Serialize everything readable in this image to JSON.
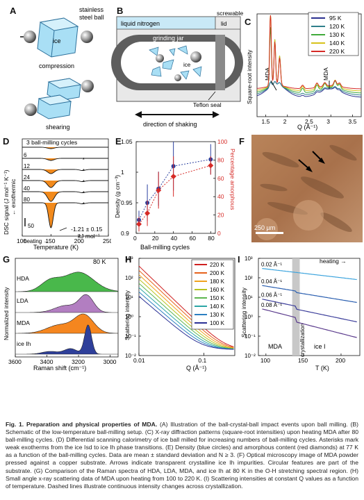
{
  "panels": {
    "A": {
      "letter": "A",
      "ball_label_1": "stainless",
      "ball_label_2": "steel ball",
      "ice": "ice",
      "compression": "compression",
      "shearing": "shearing"
    },
    "B": {
      "letter": "B",
      "liquid_nitrogen": "liquid nitrogen",
      "screwable_1": "screwable",
      "screwable_2": "lid",
      "grinding_jar": "grinding jar",
      "ice": "ice",
      "teflon": "Teflon seal",
      "direction": "direction of shaking"
    },
    "C": {
      "letter": "C",
      "ylabel": "Square-root intensity",
      "xlabel": "Q (Å⁻¹)",
      "mda1": "MDA",
      "mda2": "MDA"
    },
    "D": {
      "letter": "D",
      "ylabel": "DSC signal (J mol⁻¹ K⁻¹)",
      "ylabel2": "← exothermic",
      "xlabel": "Temperature (K)",
      "cycles_title": "3 ball-milling cycles",
      "scale": "50",
      "heating": "heating →",
      "value_1": "-1.21 ± 0.15",
      "value_2": "kJ mol⁻¹"
    },
    "E": {
      "letter": "E",
      "ylabel": "Density (g cm⁻³)",
      "ylabel2": "Percentage amorphous",
      "xlabel": "Ball-milling cycles"
    },
    "F": {
      "letter": "F",
      "scale": "250 µm"
    },
    "G": {
      "letter": "G",
      "ylabel": "Normalized intensity",
      "xlabel": "Raman shift (cm⁻¹)",
      "temp": "80 K",
      "hda": "HDA",
      "lda": "LDA",
      "mda": "MDA",
      "ice": "ice Ih"
    },
    "H": {
      "letter": "H",
      "ylabel": "Scattering intensity",
      "xlabel": "Q (Å⁻¹)"
    },
    "I": {
      "letter": "I",
      "ylabel": "Scattering intensity",
      "xlabel": "T (K)",
      "heating": "heating →",
      "mda": "MDA",
      "ice": "ice I",
      "cryst": "crystallization"
    }
  },
  "chart_data": [
    {
      "panel": "C",
      "type": "line",
      "xlabel": "Q (Å⁻¹)",
      "ylabel": "Square-root intensity",
      "xlim": [
        1.3,
        3.7
      ],
      "x_ticks": [
        1.5,
        2.0,
        2.5,
        3.0,
        3.5
      ],
      "x_tick_labels": [
        "1.5",
        "2",
        "2.5",
        "3",
        "3.5"
      ],
      "series": [
        {
          "name": "95 K",
          "color": "#2a2f8f"
        },
        {
          "name": "120 K",
          "color": "#2e7f8a"
        },
        {
          "name": "130 K",
          "color": "#3faa3a"
        },
        {
          "name": "140 K",
          "color": "#d7c21a"
        },
        {
          "name": "220 K",
          "color": "#d62a26"
        }
      ],
      "legend": "top-right"
    },
    {
      "panel": "D",
      "type": "line",
      "xlabel": "Temperature (K)",
      "xlim": [
        100,
        250
      ],
      "x_ticks": [
        100,
        150,
        200,
        250
      ],
      "x_tick_labels": [
        "100",
        "150",
        "200",
        "250"
      ],
      "series": [
        {
          "name": "3"
        },
        {
          "name": "6"
        },
        {
          "name": "12"
        },
        {
          "name": "24"
        },
        {
          "name": "40"
        },
        {
          "name": "80"
        }
      ],
      "annotation": "-1.21 ± 0.15 kJ mol⁻¹"
    },
    {
      "panel": "E",
      "type": "scatter",
      "xlabel": "Ball-milling cycles",
      "ylabel": "Density (g cm⁻³)",
      "ylabel_right": "Percentage amorphous",
      "xlim": [
        0,
        85
      ],
      "ylim": [
        0.9,
        1.05
      ],
      "ylim_right": [
        0,
        100
      ],
      "x_ticks": [
        0,
        20,
        40,
        60,
        80
      ],
      "y_ticks": [
        0.9,
        0.95,
        1.0,
        1.05
      ],
      "y_tick_labels": [
        "0.9",
        "0.95",
        "1",
        "1.05"
      ],
      "y_ticks_right": [
        0,
        20,
        40,
        60,
        80,
        100
      ],
      "series": [
        {
          "name": "Density",
          "color": "#2a3f9e",
          "x": [
            3,
            12,
            24,
            40,
            80
          ],
          "y": [
            0.922,
            0.95,
            0.973,
            1.01,
            1.021
          ],
          "err": [
            0.015,
            0.03,
            0.028,
            0.04,
            0.025
          ]
        },
        {
          "name": "Percentage amorphous",
          "color": "#d62a26",
          "x": [
            3,
            12,
            24,
            40,
            80
          ],
          "y": [
            10,
            22,
            47,
            62,
            74
          ],
          "err": [
            8,
            14,
            20,
            22,
            10
          ]
        }
      ]
    },
    {
      "panel": "G",
      "type": "area",
      "xlabel": "Raman shift (cm⁻¹)",
      "ylabel": "Normalized intensity",
      "xlim": [
        3600,
        2950
      ],
      "x_ticks": [
        3600,
        3400,
        3200,
        3000
      ],
      "x_tick_labels": [
        "3600",
        "3400",
        "3200",
        "3000"
      ],
      "series": [
        {
          "name": "HDA",
          "color": "#49b84b"
        },
        {
          "name": "LDA",
          "color": "#b27ec1"
        },
        {
          "name": "MDA",
          "color": "#f5861f"
        },
        {
          "name": "ice Ih",
          "color": "#2e3f9a"
        }
      ]
    },
    {
      "panel": "H",
      "type": "line",
      "xlabel": "Q (Å⁻¹)",
      "ylabel": "Scattering intensity",
      "scale": "log-log",
      "xlim": [
        0.01,
        0.3
      ],
      "ylim": [
        0.01,
        1000
      ],
      "x_tick_labels": [
        "0.01",
        "0.1"
      ],
      "y_tick_labels": [
        "10³",
        "10²",
        "10¹",
        "10⁰",
        "10⁻¹",
        "10⁻²"
      ],
      "series": [
        {
          "name": "220 K",
          "color": "#cf2020"
        },
        {
          "name": "200 K",
          "color": "#e6621c"
        },
        {
          "name": "180 K",
          "color": "#f0a21e"
        },
        {
          "name": "160 K",
          "color": "#b7c31f"
        },
        {
          "name": "150 K",
          "color": "#5cb54d"
        },
        {
          "name": "140 K",
          "color": "#2ba6a6"
        },
        {
          "name": "130 K",
          "color": "#2b7fc1"
        },
        {
          "name": "100 K",
          "color": "#2b3196"
        }
      ],
      "legend": "top-right"
    },
    {
      "panel": "I",
      "type": "line",
      "xlabel": "T (K)",
      "ylabel": "Scattering intensity",
      "scale": "log-y",
      "xlim": [
        90,
        225
      ],
      "x_ticks": [
        100,
        150,
        200
      ],
      "x_tick_labels": [
        "100",
        "150",
        "200"
      ],
      "y_tick_labels": [
        "10³",
        "10²",
        "10¹",
        "10⁰",
        "10⁻¹",
        "10⁻²"
      ],
      "series": [
        {
          "name": "0.02 Å⁻¹",
          "color": "#3aa3dd"
        },
        {
          "name": "0.04 Å⁻¹",
          "color": "#2b5fb0"
        },
        {
          "name": "0.06 Å⁻¹",
          "color": "#3b3d9a"
        },
        {
          "name": "0.08 Å⁻¹",
          "color": "#5a3a8c"
        }
      ],
      "shaded_region": [
        135,
        145
      ]
    }
  ],
  "caption": {
    "title": "Fig. 1. Preparation and physical properties of MDA.",
    "text": " (A) Illustration of the ball-crystal-ball impact events upon ball milling. (B) Schematic of the low-temperature ball-milling setup. (C) X-ray diffraction patterns (square-root intensities) upon heating MDA after 80 ball-milling cycles. (D) Differential scanning calorimetry of ice ball milled for increasing numbers of ball-milling cycles. Asterisks mark weak exotherms from the ice Isd to ice Ih phase transitions. (E) Density (blue circles) and amorphous content (red diamonds) at 77 K as a function of the ball-milling cycles. Data are mean ± standard deviation and N ≥ 3. (F) Optical microscopy image of MDA powder pressed against a copper substrate. Arrows indicate transparent crystalline ice Ih impurities. Circular features are part of the substrate. (G) Comparison of the Raman spectra of HDA, LDA, MDA, and ice Ih at 80 K in the O-H stretching spectral region. (H) Small angle x-ray scattering data of MDA upon heating from 100 to 220 K. (I) Scattering intensities at constant Q values as a function of temperature. Dashed lines illustrate continuous intensity changes across crystallization."
  }
}
